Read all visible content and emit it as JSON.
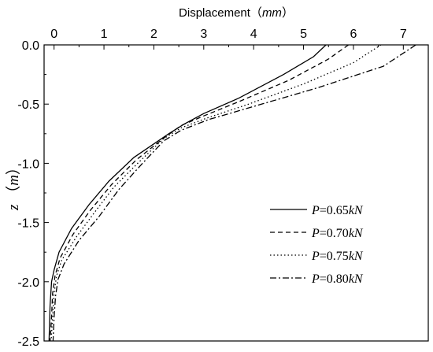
{
  "chart_data": {
    "type": "line",
    "xlabel": {
      "text": "Displacement",
      "unit": "mm"
    },
    "ylabel": {
      "text": "z",
      "unit": "m"
    },
    "xlim": [
      -0.2,
      7.5
    ],
    "ylim": [
      -2.5,
      0.0
    ],
    "x_ticks": [
      "0",
      "1",
      "2",
      "3",
      "4",
      "5",
      "6",
      "7"
    ],
    "y_ticks": [
      "0.0",
      "-0.5",
      "-1.0",
      "-1.5",
      "-2.0",
      "-2.5"
    ],
    "x_axis_position": "top",
    "legend_position": "lower-right",
    "grid": false,
    "series": [
      {
        "name": "P=0.65kN",
        "name_parts": [
          "P",
          "=0.65",
          "kN"
        ],
        "dash": "solid",
        "points": [
          [
            5.45,
            0
          ],
          [
            5.2,
            -0.1
          ],
          [
            4.6,
            -0.25
          ],
          [
            3.7,
            -0.45
          ],
          [
            3.0,
            -0.58
          ],
          [
            2.6,
            -0.67
          ],
          [
            2.3,
            -0.75
          ],
          [
            1.6,
            -0.95
          ],
          [
            1.1,
            -1.15
          ],
          [
            0.7,
            -1.35
          ],
          [
            0.35,
            -1.55
          ],
          [
            0.1,
            -1.75
          ],
          [
            0.0,
            -1.9
          ],
          [
            -0.05,
            -2.0
          ],
          [
            -0.08,
            -2.2
          ],
          [
            -0.1,
            -2.5
          ]
        ]
      },
      {
        "name": "P=0.70kN",
        "name_parts": [
          "P",
          "=0.70",
          "kN"
        ],
        "dash": "dashed",
        "points": [
          [
            5.9,
            0
          ],
          [
            5.5,
            -0.12
          ],
          [
            4.7,
            -0.3
          ],
          [
            3.7,
            -0.48
          ],
          [
            3.0,
            -0.6
          ],
          [
            2.55,
            -0.68
          ],
          [
            2.25,
            -0.77
          ],
          [
            1.65,
            -0.97
          ],
          [
            1.15,
            -1.18
          ],
          [
            0.72,
            -1.4
          ],
          [
            0.38,
            -1.6
          ],
          [
            0.12,
            -1.8
          ],
          [
            0.02,
            -1.95
          ],
          [
            -0.03,
            -2.1
          ],
          [
            -0.05,
            -2.3
          ],
          [
            -0.08,
            -2.5
          ]
        ]
      },
      {
        "name": "P=0.75kN",
        "name_parts": [
          "P",
          "=0.75",
          "kN"
        ],
        "dash": "dotted",
        "points": [
          [
            6.55,
            0
          ],
          [
            6.0,
            -0.15
          ],
          [
            5.0,
            -0.33
          ],
          [
            3.9,
            -0.5
          ],
          [
            3.05,
            -0.62
          ],
          [
            2.55,
            -0.7
          ],
          [
            2.2,
            -0.79
          ],
          [
            1.7,
            -0.99
          ],
          [
            1.2,
            -1.2
          ],
          [
            0.8,
            -1.42
          ],
          [
            0.45,
            -1.62
          ],
          [
            0.15,
            -1.82
          ],
          [
            0.05,
            -1.95
          ],
          [
            0.0,
            -2.1
          ],
          [
            -0.03,
            -2.3
          ],
          [
            -0.06,
            -2.5
          ]
        ]
      },
      {
        "name": "P=0.80kN",
        "name_parts": [
          "P",
          "=0.80",
          "kN"
        ],
        "dash": "dashdot",
        "points": [
          [
            7.25,
            0
          ],
          [
            6.6,
            -0.18
          ],
          [
            5.3,
            -0.36
          ],
          [
            4.0,
            -0.52
          ],
          [
            3.1,
            -0.63
          ],
          [
            2.55,
            -0.72
          ],
          [
            2.2,
            -0.81
          ],
          [
            1.75,
            -1.01
          ],
          [
            1.3,
            -1.22
          ],
          [
            0.9,
            -1.45
          ],
          [
            0.5,
            -1.65
          ],
          [
            0.2,
            -1.85
          ],
          [
            0.08,
            -1.98
          ],
          [
            0.03,
            -2.12
          ],
          [
            0.0,
            -2.3
          ],
          [
            -0.02,
            -2.5
          ]
        ]
      }
    ]
  }
}
